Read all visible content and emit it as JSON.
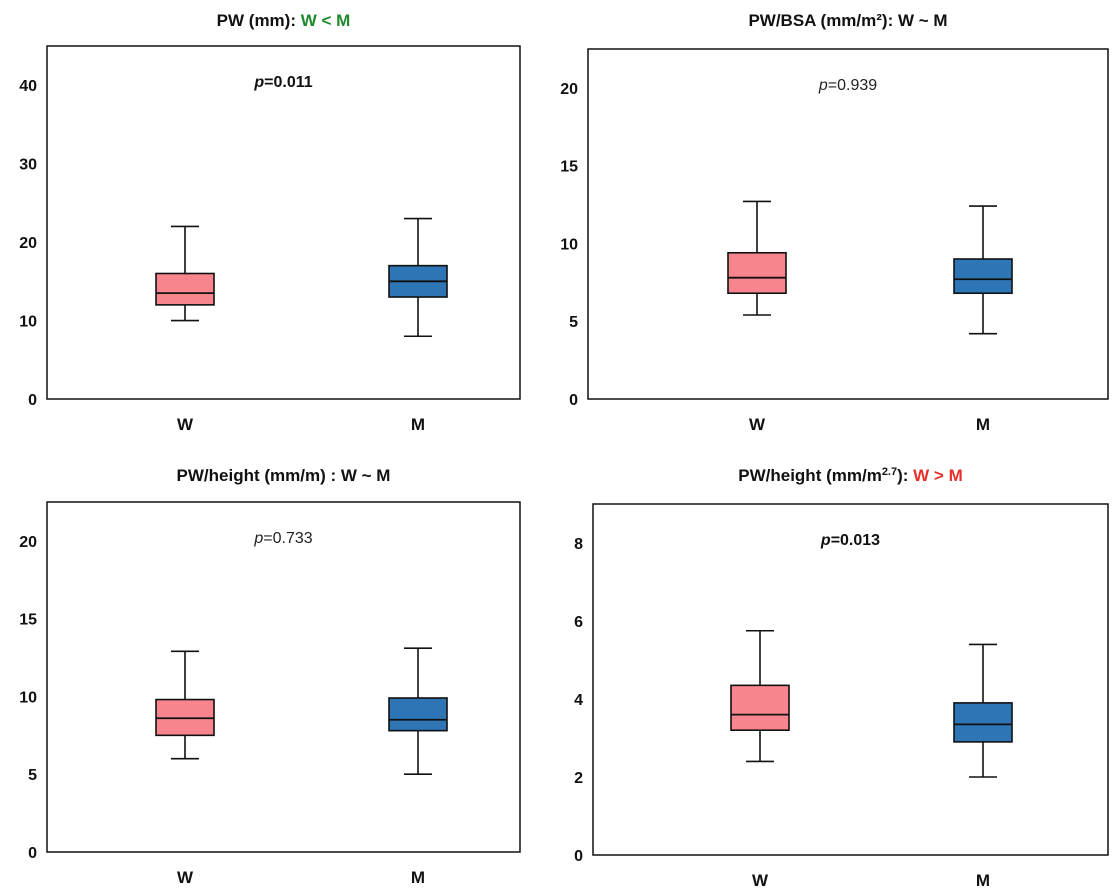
{
  "colors": {
    "W": "#f8858e",
    "M": "#2e75b6",
    "greater": "#e8302a",
    "less": "#1e8a2e"
  },
  "chart_data": [
    {
      "type": "box",
      "title_main": "PW (mm): ",
      "title_comp": "W < M",
      "title_comp_color": "#1e8a2e",
      "p_label": "p",
      "p_value": "=0.011",
      "p_bold": true,
      "ylim": [
        0,
        45
      ],
      "yticks": [
        0,
        10,
        20,
        30,
        40
      ],
      "categories": [
        "W",
        "M"
      ],
      "boxes": [
        {
          "name": "W",
          "min": 10,
          "q1": 12,
          "median": 13.5,
          "q3": 16,
          "max": 22
        },
        {
          "name": "M",
          "min": 8,
          "q1": 13,
          "median": 15,
          "q3": 17,
          "max": 23
        }
      ]
    },
    {
      "type": "box",
      "title_main": "PW/BSA (mm/m²): W ~ M",
      "title_comp": "",
      "title_comp_color": "#111111",
      "p_label": "p",
      "p_value": "=0.939",
      "p_bold": false,
      "ylim": [
        0,
        22.5
      ],
      "yticks": [
        0,
        5,
        10,
        15,
        20
      ],
      "categories": [
        "W",
        "M"
      ],
      "boxes": [
        {
          "name": "W",
          "min": 5.4,
          "q1": 6.8,
          "median": 7.8,
          "q3": 9.4,
          "max": 12.7
        },
        {
          "name": "M",
          "min": 4.2,
          "q1": 6.8,
          "median": 7.7,
          "q3": 9.0,
          "max": 12.4
        }
      ]
    },
    {
      "type": "box",
      "title_main": "PW/height (mm/m) : W ~ M",
      "title_comp": "",
      "title_comp_color": "#111111",
      "p_label": "p",
      "p_value": "=0.733",
      "p_bold": false,
      "ylim": [
        0,
        22.5
      ],
      "yticks": [
        0,
        5,
        10,
        15,
        20
      ],
      "categories": [
        "W",
        "M"
      ],
      "boxes": [
        {
          "name": "W",
          "min": 6.0,
          "q1": 7.5,
          "median": 8.6,
          "q3": 9.8,
          "max": 12.9
        },
        {
          "name": "M",
          "min": 5.0,
          "q1": 7.8,
          "median": 8.5,
          "q3": 9.9,
          "max": 13.1
        }
      ]
    },
    {
      "type": "box",
      "title_main": "PW/height (mm/m",
      "title_sup": "2.7",
      "title_tail": "): ",
      "title_comp": "W > M",
      "title_comp_color": "#e8302a",
      "p_label": "p",
      "p_value": "=0.013",
      "p_bold": true,
      "ylim": [
        0,
        9
      ],
      "yticks": [
        0,
        2,
        4,
        6,
        8
      ],
      "categories": [
        "W",
        "M"
      ],
      "boxes": [
        {
          "name": "W",
          "min": 2.4,
          "q1": 3.2,
          "median": 3.6,
          "q3": 4.35,
          "max": 5.75
        },
        {
          "name": "M",
          "min": 2.0,
          "q1": 2.9,
          "median": 3.35,
          "q3": 3.9,
          "max": 5.4
        }
      ]
    }
  ]
}
